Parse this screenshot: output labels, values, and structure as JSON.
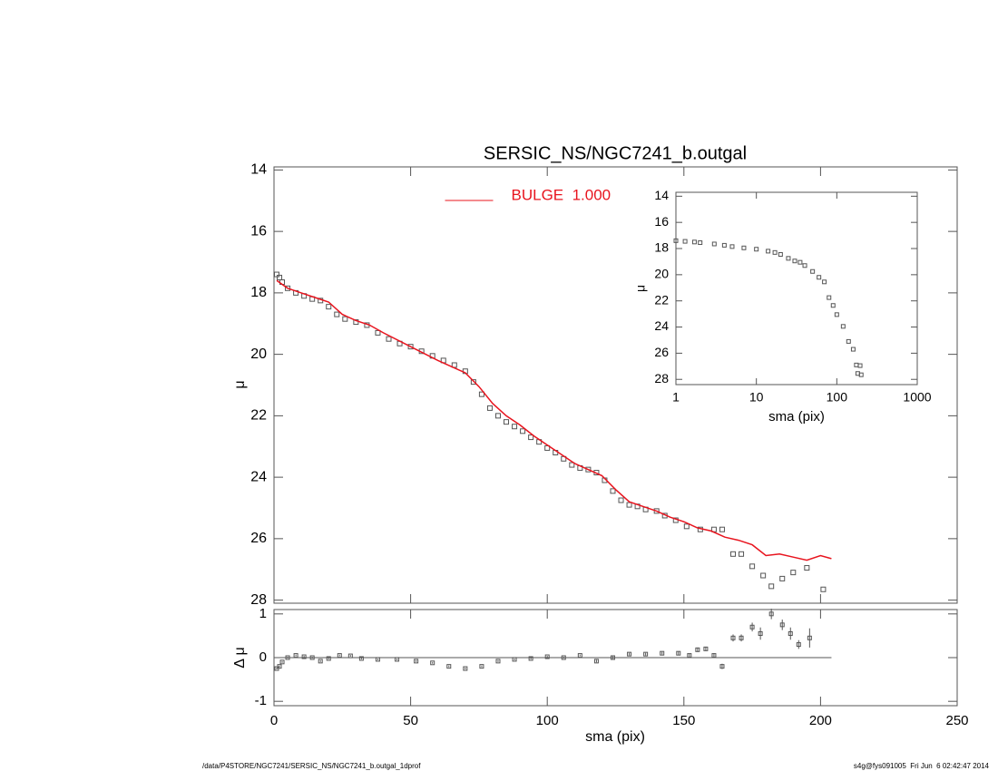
{
  "chart_data": [
    {
      "type": "scatter",
      "title": "SERSIC_NS/NGC7241_b.outgal",
      "xlabel": "sma (pix)",
      "ylabel": "μ",
      "xlim": [
        0,
        250
      ],
      "xticks": [
        0,
        50,
        100,
        150,
        200,
        250
      ],
      "ylim": [
        28.1,
        13.9
      ],
      "yticks": [
        14,
        16,
        18,
        20,
        22,
        24,
        26,
        28
      ],
      "legend": "top-center",
      "series": [
        {
          "style": "markers",
          "color": "#555555",
          "x": [
            1,
            2,
            3,
            5,
            8,
            11,
            14,
            17,
            20,
            23,
            26,
            30,
            34,
            38,
            42,
            46,
            50,
            54,
            58,
            62,
            66,
            70,
            73,
            76,
            79,
            82,
            85,
            88,
            91,
            94,
            97,
            100,
            103,
            106,
            109,
            112,
            115,
            118,
            121,
            124,
            127,
            130,
            133,
            136,
            140,
            143,
            147,
            151,
            156,
            161,
            164,
            168,
            171,
            175,
            179,
            182,
            186,
            190,
            195,
            201
          ],
          "values": [
            17.4,
            17.5,
            17.65,
            17.85,
            18.0,
            18.1,
            18.2,
            18.25,
            18.45,
            18.7,
            18.85,
            18.95,
            19.05,
            19.3,
            19.5,
            19.65,
            19.75,
            19.9,
            20.05,
            20.2,
            20.35,
            20.55,
            20.9,
            21.3,
            21.75,
            22.0,
            22.2,
            22.35,
            22.5,
            22.7,
            22.85,
            23.05,
            23.2,
            23.4,
            23.6,
            23.7,
            23.75,
            23.85,
            24.1,
            24.45,
            24.75,
            24.9,
            24.95,
            25.05,
            25.1,
            25.25,
            25.4,
            25.6,
            25.7,
            25.7,
            25.7,
            26.5,
            26.5,
            26.9,
            27.2,
            27.55,
            27.3,
            27.1,
            26.95,
            27.65
          ]
        },
        {
          "style": "line",
          "name": "BULGE  1.000",
          "color": "#e8141e",
          "x": [
            1,
            5,
            10,
            15,
            20,
            25,
            30,
            35,
            40,
            50,
            60,
            70,
            75,
            80,
            85,
            90,
            95,
            100,
            105,
            110,
            115,
            120,
            125,
            130,
            135,
            140,
            145,
            150,
            155,
            160,
            165,
            170,
            175,
            180,
            185,
            190,
            195,
            200,
            204
          ],
          "values": [
            17.6,
            17.85,
            18.0,
            18.15,
            18.3,
            18.7,
            18.9,
            19.05,
            19.3,
            19.75,
            20.2,
            20.6,
            21.05,
            21.6,
            22.0,
            22.3,
            22.65,
            22.95,
            23.25,
            23.55,
            23.75,
            23.95,
            24.4,
            24.8,
            24.95,
            25.1,
            25.3,
            25.45,
            25.65,
            25.75,
            25.95,
            26.05,
            26.2,
            26.55,
            26.5,
            26.6,
            26.7,
            26.55,
            26.65
          ]
        }
      ]
    },
    {
      "type": "scatter",
      "ylabel": "Δ μ",
      "ylim": [
        -1.1,
        1.1
      ],
      "yticks": [
        1,
        0,
        -1
      ],
      "hline": {
        "y": 0,
        "xmax": 204
      },
      "series": [
        {
          "style": "markers",
          "color": "#555555",
          "x": [
            1,
            2,
            3,
            5,
            8,
            11,
            14,
            17,
            20,
            24,
            28,
            32,
            38,
            45,
            52,
            58,
            64,
            70,
            76,
            82,
            88,
            94,
            100,
            106,
            112,
            118,
            124,
            130,
            136,
            142,
            148,
            152,
            155,
            158,
            161,
            164,
            168,
            171,
            175,
            178,
            182,
            186,
            189,
            192,
            196
          ],
          "values": [
            -0.25,
            -0.2,
            -0.1,
            0.0,
            0.05,
            0.02,
            0.0,
            -0.08,
            -0.02,
            0.05,
            0.04,
            -0.02,
            -0.04,
            -0.04,
            -0.08,
            -0.12,
            -0.2,
            -0.25,
            -0.2,
            -0.08,
            -0.04,
            -0.02,
            0.02,
            0.0,
            0.05,
            -0.08,
            0.0,
            0.08,
            0.08,
            0.1,
            0.1,
            0.05,
            0.18,
            0.2,
            0.05,
            -0.2,
            0.45,
            0.45,
            0.7,
            0.55,
            1.0,
            0.75,
            0.55,
            0.3,
            0.45
          ],
          "errors": [
            0.02,
            0.02,
            0.02,
            0.02,
            0.02,
            0.02,
            0.02,
            0.02,
            0.02,
            0.02,
            0.02,
            0.02,
            0.02,
            0.02,
            0.02,
            0.02,
            0.02,
            0.02,
            0.02,
            0.02,
            0.02,
            0.02,
            0.02,
            0.02,
            0.02,
            0.03,
            0.03,
            0.03,
            0.03,
            0.03,
            0.04,
            0.04,
            0.05,
            0.05,
            0.05,
            0.06,
            0.08,
            0.08,
            0.1,
            0.14,
            0.12,
            0.12,
            0.14,
            0.1,
            0.22
          ]
        }
      ]
    },
    {
      "type": "scatter",
      "xlabel": "sma (pix)",
      "ylabel": "μ",
      "log_x": true,
      "xlim": [
        1,
        1000
      ],
      "xticks": [
        1,
        10,
        100,
        1000
      ],
      "ylim": [
        28.4,
        13.7
      ],
      "yticks": [
        14,
        16,
        18,
        20,
        22,
        24,
        26,
        28
      ],
      "series": [
        {
          "style": "markers",
          "color": "#555555",
          "x": [
            1,
            1.3,
            1.7,
            2,
            3,
            4,
            5,
            7,
            10,
            14,
            17,
            20,
            25,
            30,
            35,
            40,
            50,
            60,
            70,
            80,
            90,
            100,
            120,
            140,
            160,
            175,
            182,
            195,
            201
          ],
          "values": [
            17.4,
            17.45,
            17.5,
            17.55,
            17.65,
            17.75,
            17.85,
            17.95,
            18.05,
            18.2,
            18.3,
            18.45,
            18.75,
            18.95,
            19.05,
            19.3,
            19.75,
            20.2,
            20.55,
            21.75,
            22.35,
            23.05,
            23.95,
            25.1,
            25.7,
            26.9,
            27.55,
            26.95,
            27.65
          ]
        }
      ]
    }
  ],
  "footer": {
    "left": "/data/P4STORE/NGC7241/SERSIC_NS/NGC7241_b.outgal_1dprof",
    "right": "s4g@fys091005  Fri Jun  6 02:42:47 2014"
  }
}
